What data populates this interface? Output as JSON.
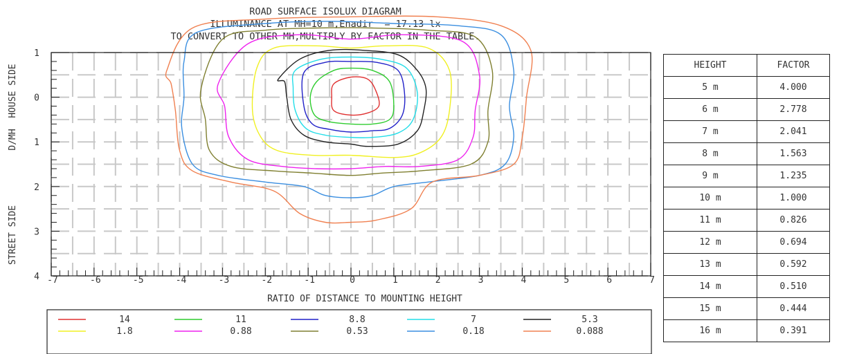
{
  "title": {
    "line1": "ROAD SURFACE ISOLUX DIAGRAM",
    "line2": "ILLUMINANCE AT MH=10 m,Enadir  = 17.13 lx",
    "line3": "TO CONVERT TO OTHER MH,MULTIPLY BY FACTOR IN THE TABLE."
  },
  "chart_data": {
    "type": "contour",
    "title": "ROAD SURFACE ISOLUX DIAGRAM",
    "xlabel": "RATIO OF DISTANCE TO MOUNTING HEIGHT",
    "ylabel_house": "D/MH  HOUSE SIDE",
    "ylabel_street": "STREET SIDE",
    "xlim": [
      -7,
      7
    ],
    "ylim": [
      -1,
      4
    ],
    "y_axis_inverted": true,
    "x_ticks": [
      "-7",
      "-6",
      "-5",
      "-4",
      "-3",
      "-2",
      "-1",
      "0",
      "1",
      "2",
      "3",
      "4",
      "5",
      "6",
      "7"
    ],
    "y_ticks": [
      {
        "value": -1,
        "label": "1"
      },
      {
        "value": 0,
        "label": "0"
      },
      {
        "value": 1,
        "label": "1"
      },
      {
        "value": 2,
        "label": "2"
      },
      {
        "value": 3,
        "label": "3"
      },
      {
        "value": 4,
        "label": "4"
      }
    ],
    "grid": true,
    "legend_position": "bottom",
    "series": [
      {
        "name": "14",
        "color": "#e03030",
        "points": [
          [
            -0.4,
            -0.3
          ],
          [
            0,
            -0.45
          ],
          [
            0.4,
            -0.4
          ],
          [
            0.6,
            -0.1
          ],
          [
            0.65,
            0.2
          ],
          [
            0.4,
            0.35
          ],
          [
            0,
            0.4
          ],
          [
            -0.4,
            0.3
          ],
          [
            -0.45,
            0
          ]
        ]
      },
      {
        "name": "11",
        "color": "#2ecc2e",
        "points": [
          [
            -0.8,
            -0.35
          ],
          [
            -0.4,
            -0.6
          ],
          [
            0,
            -0.65
          ],
          [
            0.5,
            -0.6
          ],
          [
            0.9,
            -0.35
          ],
          [
            1.0,
            0.2
          ],
          [
            0.9,
            0.5
          ],
          [
            0.5,
            0.6
          ],
          [
            0,
            0.6
          ],
          [
            -0.5,
            0.55
          ],
          [
            -0.85,
            0.4
          ],
          [
            -0.95,
            0
          ]
        ]
      },
      {
        "name": "8.8",
        "color": "#2020c8",
        "points": [
          [
            -1.1,
            -0.55
          ],
          [
            -0.6,
            -0.78
          ],
          [
            0,
            -0.8
          ],
          [
            0.6,
            -0.78
          ],
          [
            1.1,
            -0.6
          ],
          [
            1.25,
            -0.1
          ],
          [
            1.2,
            0.4
          ],
          [
            0.9,
            0.7
          ],
          [
            0.5,
            0.75
          ],
          [
            0,
            0.78
          ],
          [
            -0.5,
            0.72
          ],
          [
            -0.9,
            0.6
          ],
          [
            -1.1,
            0.2
          ]
        ]
      },
      {
        "name": "7",
        "color": "#22dde8",
        "points": [
          [
            -1.3,
            -0.6
          ],
          [
            -0.7,
            -0.85
          ],
          [
            0,
            -0.9
          ],
          [
            0.7,
            -0.85
          ],
          [
            1.3,
            -0.65
          ],
          [
            1.55,
            -0.1
          ],
          [
            1.45,
            0.5
          ],
          [
            1.1,
            0.8
          ],
          [
            0.5,
            0.9
          ],
          [
            0,
            0.9
          ],
          [
            -0.6,
            0.85
          ],
          [
            -1.05,
            0.7
          ],
          [
            -1.3,
            0.3
          ],
          [
            -1.35,
            -0.2
          ]
        ]
      },
      {
        "name": "5.3",
        "color": "#222222",
        "points": [
          [
            -1.7,
            -0.4
          ],
          [
            -1.2,
            -0.85
          ],
          [
            -0.5,
            -1.05
          ],
          [
            0.3,
            -1.05
          ],
          [
            1.1,
            -0.95
          ],
          [
            1.55,
            -0.6
          ],
          [
            1.75,
            -0.2
          ],
          [
            1.7,
            0.3
          ],
          [
            1.55,
            0.75
          ],
          [
            1.1,
            1.05
          ],
          [
            0.4,
            1.1
          ],
          [
            0,
            1.05
          ],
          [
            -0.6,
            1.0
          ],
          [
            -1.1,
            0.85
          ],
          [
            -1.4,
            0.5
          ],
          [
            -1.5,
            0
          ],
          [
            -1.55,
            -0.35
          ]
        ]
      },
      {
        "name": "1.8",
        "color": "#f0f020",
        "points": [
          [
            -2.2,
            -0.65
          ],
          [
            -1.8,
            -1.1
          ],
          [
            -0.8,
            -1.15
          ],
          [
            0,
            -1.1
          ],
          [
            0.8,
            -1.15
          ],
          [
            1.8,
            -1.1
          ],
          [
            2.3,
            -0.6
          ],
          [
            2.3,
            0.3
          ],
          [
            2.1,
            0.9
          ],
          [
            1.6,
            1.25
          ],
          [
            1.0,
            1.35
          ],
          [
            0,
            1.3
          ],
          [
            -0.9,
            1.3
          ],
          [
            -1.7,
            1.2
          ],
          [
            -2.1,
            0.9
          ],
          [
            -2.3,
            0.3
          ]
        ]
      },
      {
        "name": "0.88",
        "color": "#ee22ee",
        "points": [
          [
            -3.1,
            -0.3
          ],
          [
            -2.4,
            -1.2
          ],
          [
            -1.2,
            -1.4
          ],
          [
            0,
            -1.3
          ],
          [
            1.2,
            -1.4
          ],
          [
            2.6,
            -1.25
          ],
          [
            3.0,
            -0.5
          ],
          [
            2.9,
            0.3
          ],
          [
            2.85,
            0.9
          ],
          [
            2.5,
            1.4
          ],
          [
            1.6,
            1.55
          ],
          [
            0.8,
            1.55
          ],
          [
            0,
            1.6
          ],
          [
            -0.8,
            1.6
          ],
          [
            -1.6,
            1.55
          ],
          [
            -2.4,
            1.4
          ],
          [
            -2.85,
            0.9
          ],
          [
            -2.95,
            0.2
          ]
        ]
      },
      {
        "name": "0.53",
        "color": "#7f7f30",
        "points": [
          [
            -3.5,
            -0.2
          ],
          [
            -3.0,
            -1.3
          ],
          [
            -2.0,
            -1.5
          ],
          [
            -0.8,
            -1.55
          ],
          [
            0.5,
            -1.55
          ],
          [
            1.8,
            -1.5
          ],
          [
            2.9,
            -1.35
          ],
          [
            3.3,
            -0.6
          ],
          [
            3.2,
            0.3
          ],
          [
            3.2,
            1.0
          ],
          [
            2.8,
            1.5
          ],
          [
            1.6,
            1.65
          ],
          [
            0.7,
            1.7
          ],
          [
            0,
            1.75
          ],
          [
            -0.9,
            1.7
          ],
          [
            -1.8,
            1.65
          ],
          [
            -2.8,
            1.55
          ],
          [
            -3.3,
            1.2
          ],
          [
            -3.4,
            0.5
          ]
        ]
      },
      {
        "name": "0.18",
        "color": "#3a8ee0",
        "points": [
          [
            -3.9,
            -0.8
          ],
          [
            -3.6,
            -1.45
          ],
          [
            -2.0,
            -1.65
          ],
          [
            -0.5,
            -1.7
          ],
          [
            1.0,
            -1.65
          ],
          [
            2.5,
            -1.6
          ],
          [
            3.5,
            -1.4
          ],
          [
            3.8,
            -0.6
          ],
          [
            3.7,
            0.2
          ],
          [
            3.8,
            0.9
          ],
          [
            3.6,
            1.5
          ],
          [
            3.0,
            1.75
          ],
          [
            1.8,
            1.9
          ],
          [
            1.0,
            2.0
          ],
          [
            0.5,
            2.2
          ],
          [
            0,
            2.25
          ],
          [
            -0.6,
            2.2
          ],
          [
            -1.1,
            2.0
          ],
          [
            -2.0,
            1.9
          ],
          [
            -3.1,
            1.75
          ],
          [
            -3.7,
            1.5
          ],
          [
            -3.95,
            0.7
          ],
          [
            -3.9,
            0
          ]
        ]
      },
      {
        "name": "0.088",
        "color": "#f08050",
        "points": [
          [
            -4.3,
            -0.6
          ],
          [
            -3.7,
            -1.55
          ],
          [
            -2.0,
            -1.75
          ],
          [
            0,
            -1.8
          ],
          [
            2.0,
            -1.8
          ],
          [
            3.5,
            -1.6
          ],
          [
            4.2,
            -1.05
          ],
          [
            4.1,
            0
          ],
          [
            4.0,
            0.9
          ],
          [
            3.8,
            1.5
          ],
          [
            3.0,
            1.75
          ],
          [
            1.9,
            1.9
          ],
          [
            1.4,
            2.5
          ],
          [
            0.6,
            2.75
          ],
          [
            0,
            2.8
          ],
          [
            -0.6,
            2.8
          ],
          [
            -1.2,
            2.6
          ],
          [
            -1.8,
            2.1
          ],
          [
            -2.8,
            1.9
          ],
          [
            -3.7,
            1.65
          ],
          [
            -4.0,
            1.2
          ],
          [
            -4.1,
            0.3
          ],
          [
            -4.2,
            -0.3
          ]
        ]
      }
    ]
  },
  "legend": [
    {
      "label": "14",
      "color": "#e03030"
    },
    {
      "label": "11",
      "color": "#2ecc2e"
    },
    {
      "label": "8.8",
      "color": "#2020c8"
    },
    {
      "label": "7",
      "color": "#22dde8"
    },
    {
      "label": "5.3",
      "color": "#222222"
    },
    {
      "label": "1.8",
      "color": "#f0f020"
    },
    {
      "label": "0.88",
      "color": "#ee22ee"
    },
    {
      "label": "0.53",
      "color": "#7f7f30"
    },
    {
      "label": "0.18",
      "color": "#3a8ee0"
    },
    {
      "label": "0.088",
      "color": "#f08050"
    }
  ],
  "table": {
    "headers": [
      "HEIGHT",
      "FACTOR"
    ],
    "rows": [
      [
        "5 m",
        "4.000"
      ],
      [
        "6 m",
        "2.778"
      ],
      [
        "7 m",
        "2.041"
      ],
      [
        "8 m",
        "1.563"
      ],
      [
        "9 m",
        "1.235"
      ],
      [
        "10 m",
        "1.000"
      ],
      [
        "11 m",
        "0.826"
      ],
      [
        "12 m",
        "0.694"
      ],
      [
        "13 m",
        "0.592"
      ],
      [
        "14 m",
        "0.510"
      ],
      [
        "15 m",
        "0.444"
      ],
      [
        "16 m",
        "0.391"
      ]
    ]
  }
}
